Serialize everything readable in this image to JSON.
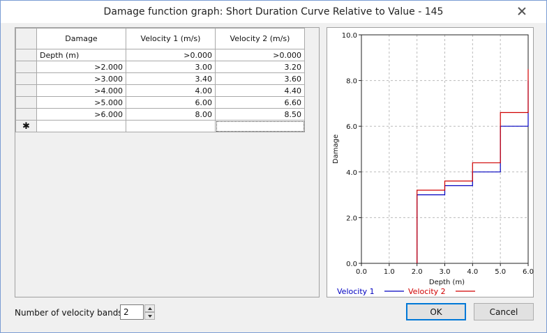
{
  "window": {
    "title": "Damage function graph: Short Duration Curve Relative to Value - 145",
    "close_icon": "close-icon"
  },
  "grid": {
    "headers": [
      "Damage",
      "Velocity 1 (m/s)",
      "Velocity 2 (m/s)"
    ],
    "rows": [
      {
        "damage": "Depth (m)",
        "v1": ">0.000",
        "v2": ">0.000"
      },
      {
        "damage": ">2.000",
        "v1": "3.00",
        "v2": "3.20"
      },
      {
        "damage": ">3.000",
        "v1": "3.40",
        "v2": "3.60"
      },
      {
        "damage": ">4.000",
        "v1": "4.00",
        "v2": "4.40"
      },
      {
        "damage": ">5.000",
        "v1": "6.00",
        "v2": "6.60"
      },
      {
        "damage": ">6.000",
        "v1": "8.00",
        "v2": "8.50"
      }
    ],
    "new_row_marker": "✱"
  },
  "chart_data": {
    "type": "line",
    "xlabel": "Depth (m)",
    "ylabel": "Damage",
    "xlim": [
      0.0,
      6.0
    ],
    "ylim": [
      0.0,
      10.0
    ],
    "xticks": [
      "0.0",
      "1.0",
      "2.0",
      "3.0",
      "4.0",
      "5.0",
      "6.0"
    ],
    "yticks": [
      "0.0",
      "2.0",
      "4.0",
      "6.0",
      "8.0",
      "10.0"
    ],
    "grid": true,
    "step": true,
    "legend_position": "bottom",
    "series": [
      {
        "name": "Velocity 1",
        "color": "#0000c0",
        "points": [
          [
            2.0,
            0.0
          ],
          [
            2.0,
            3.0
          ],
          [
            3.0,
            3.0
          ],
          [
            3.0,
            3.4
          ],
          [
            4.0,
            3.4
          ],
          [
            4.0,
            4.0
          ],
          [
            5.0,
            4.0
          ],
          [
            5.0,
            6.0
          ],
          [
            6.0,
            6.0
          ],
          [
            6.0,
            8.0
          ]
        ]
      },
      {
        "name": "Velocity 2",
        "color": "#d00000",
        "points": [
          [
            2.0,
            0.0
          ],
          [
            2.0,
            3.2
          ],
          [
            3.0,
            3.2
          ],
          [
            3.0,
            3.6
          ],
          [
            4.0,
            3.6
          ],
          [
            4.0,
            4.4
          ],
          [
            5.0,
            4.4
          ],
          [
            5.0,
            6.6
          ],
          [
            6.0,
            6.6
          ],
          [
            6.0,
            8.5
          ]
        ]
      }
    ]
  },
  "footer": {
    "bands_label": "Number of velocity bands:",
    "bands_value": "2",
    "ok_label": "OK",
    "cancel_label": "Cancel"
  }
}
